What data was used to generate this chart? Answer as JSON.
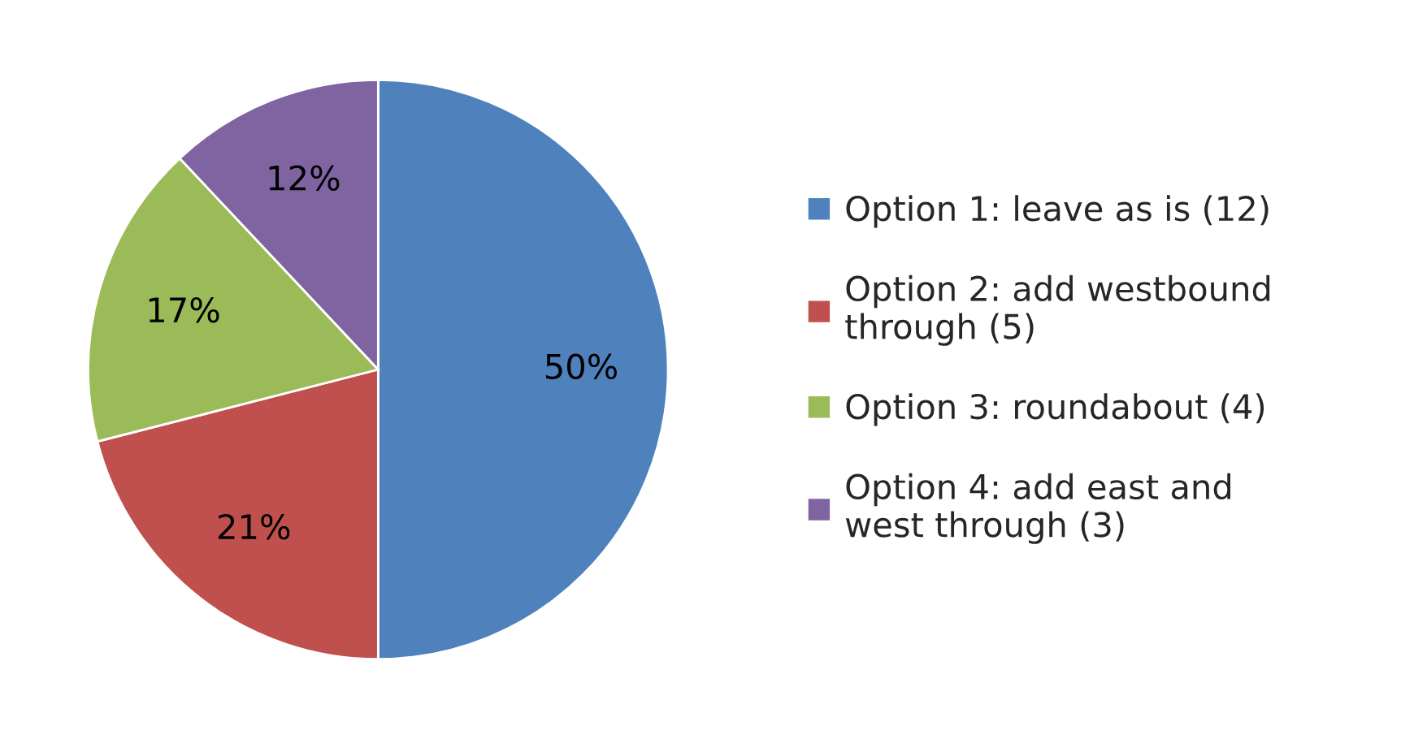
{
  "chart_data": {
    "type": "pie",
    "categories": [
      "Option 1: leave as is (12)",
      "Option 2: add westbound\nthrough (5)",
      "Option 3: roundabout (4)",
      "Option 4: add east and\nwest through (3)"
    ],
    "values": [
      50,
      21,
      17,
      12
    ],
    "colors": [
      "#4f81bd",
      "#c0504d",
      "#9bbb59",
      "#8064a2"
    ],
    "value_labels": [
      "50%",
      "21%",
      "17%",
      "12%"
    ],
    "legend": "right"
  }
}
